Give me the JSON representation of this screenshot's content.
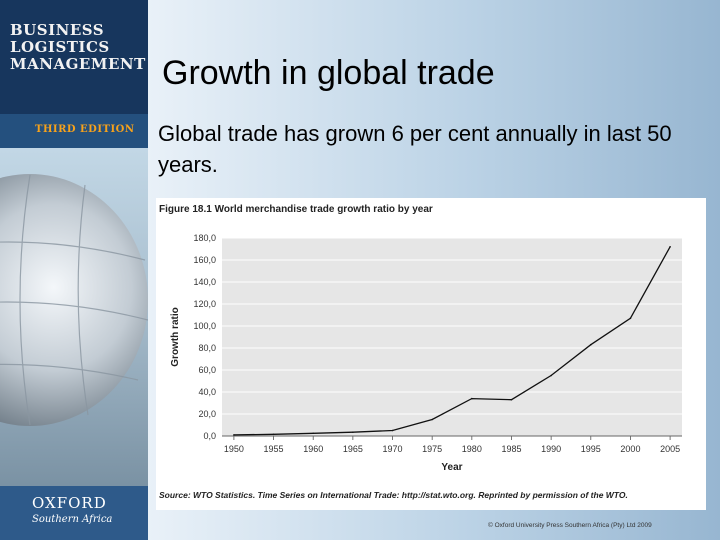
{
  "branding": {
    "title_lines": [
      "BUSINESS",
      "LOGISTICS",
      "MANAGEMENT"
    ],
    "edition": "THIRD EDITION",
    "publisher": "OXFORD",
    "publisher_region": "Southern Africa"
  },
  "slide": {
    "title": "Growth in global trade",
    "body": "Global trade has grown 6 per cent annually in last 50 years."
  },
  "figure": {
    "caption": "Figure 18.1 World merchandise trade growth ratio by year",
    "source": "Source: WTO Statistics. Time Series on International Trade: http://stat.wto.org. Reprinted by permission of the WTO."
  },
  "copyright": "© Oxford University Press Southern Africa (Pty) Ltd 2009",
  "colors": {
    "navy": "#17365d",
    "edition_orange": "#f7a21b",
    "plot_bg": "#e6e6e6",
    "line": "#111111"
  },
  "chart_data": {
    "type": "line",
    "title": "Figure 18.1 World merchandise trade growth ratio by year",
    "xlabel": "Year",
    "ylabel": "Growth ratio",
    "x": [
      1950,
      1955,
      1960,
      1965,
      1970,
      1975,
      1980,
      1985,
      1990,
      1995,
      2000,
      2005
    ],
    "series": [
      {
        "values": [
          1.0,
          1.5,
          2.5,
          3.5,
          5.0,
          15.0,
          34.0,
          33.0,
          55.0,
          83.0,
          107.0,
          172.0
        ]
      }
    ],
    "ylim": [
      0,
      180
    ],
    "yticks": [
      "0,0",
      "20,0",
      "40,0",
      "60,0",
      "80,0",
      "100,0",
      "120,0",
      "140,0",
      "160,0",
      "180,0"
    ],
    "yticks_values": [
      0,
      20,
      40,
      60,
      80,
      100,
      120,
      140,
      160,
      180
    ],
    "xticks": [
      "1950",
      "1955",
      "1960",
      "1965",
      "1970",
      "1975",
      "1980",
      "1985",
      "1990",
      "1995",
      "2000",
      "2005"
    ],
    "grid": true,
    "legend": "none"
  }
}
